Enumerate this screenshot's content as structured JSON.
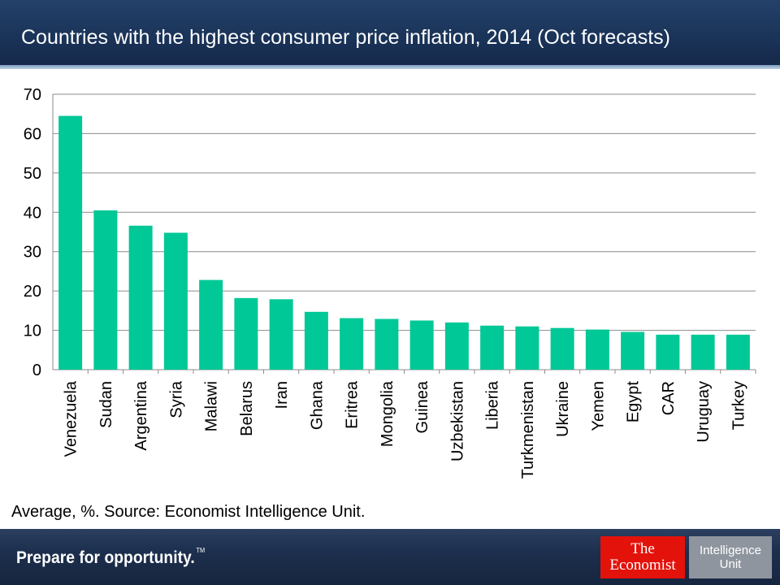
{
  "header": {
    "title": "Countries with the highest consumer price inflation, 2014 (Oct forecasts)"
  },
  "chart_data": {
    "type": "bar",
    "title": "Countries with the highest consumer price inflation, 2014 (Oct forecasts)",
    "categories": [
      "Venezuela",
      "Sudan",
      "Argentina",
      "Syria",
      "Malawi",
      "Belarus",
      "Iran",
      "Ghana",
      "Eritrea",
      "Mongolia",
      "Guinea",
      "Uzbekistan",
      "Liberia",
      "Turkmenistan",
      "Ukraine",
      "Yemen",
      "Egypt",
      "CAR",
      "Uruguay",
      "Turkey"
    ],
    "values": [
      64.5,
      40.5,
      36.6,
      34.8,
      22.8,
      18.2,
      17.9,
      14.7,
      13.1,
      12.9,
      12.5,
      12.0,
      11.2,
      11.0,
      10.6,
      10.2,
      9.6,
      8.9,
      8.9,
      8.9
    ],
    "ylim": [
      0,
      70
    ],
    "yticks": [
      0,
      10,
      20,
      30,
      40,
      50,
      60,
      70
    ],
    "xlabel": "",
    "ylabel": "",
    "grid": true,
    "bar_color": "#00c896"
  },
  "source_note": "Average, %. Source: Economist Intelligence Unit.",
  "footer": {
    "tagline": "Prepare for opportunity.",
    "tagline_mark": "TM",
    "logo_economist": {
      "line1": "The",
      "line2": "Economist"
    },
    "logo_eiu": {
      "line1": "Intelligence",
      "line2": "Unit"
    }
  }
}
